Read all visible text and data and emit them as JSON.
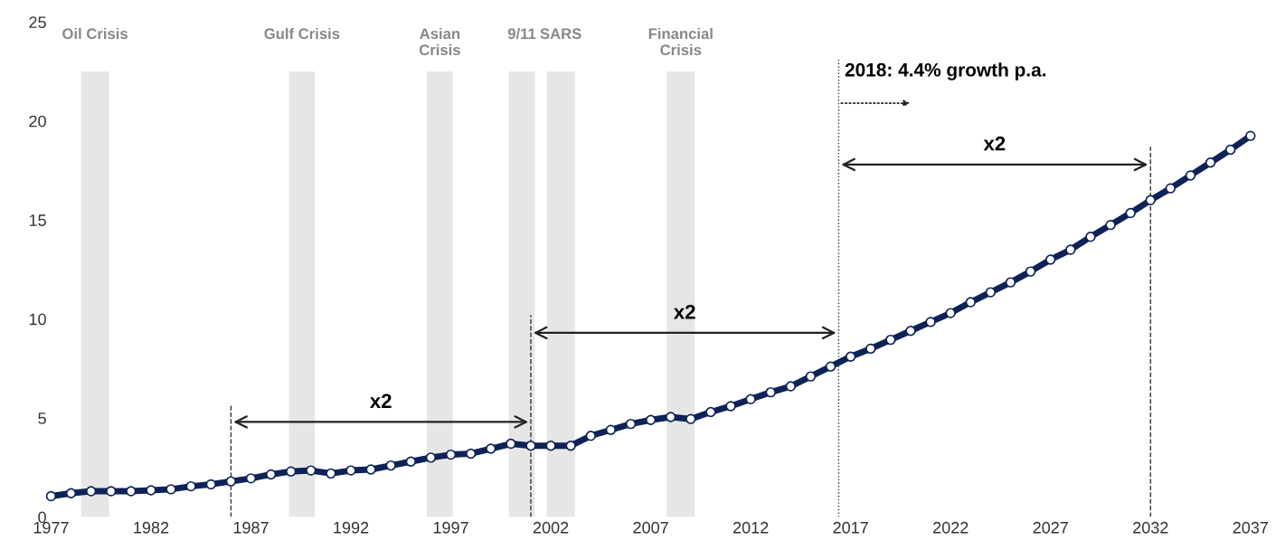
{
  "chart_data": {
    "type": "line",
    "x": [
      1977,
      1978,
      1979,
      1980,
      1981,
      1982,
      1983,
      1984,
      1985,
      1986,
      1987,
      1988,
      1989,
      1990,
      1991,
      1992,
      1993,
      1994,
      1995,
      1996,
      1997,
      1998,
      1999,
      2000,
      2001,
      2002,
      2003,
      2004,
      2005,
      2006,
      2007,
      2008,
      2009,
      2010,
      2011,
      2012,
      2013,
      2014,
      2015,
      2016,
      2017,
      2018,
      2019,
      2020,
      2021,
      2022,
      2023,
      2024,
      2025,
      2026,
      2027,
      2028,
      2029,
      2030,
      2031,
      2032,
      2033,
      2034,
      2035,
      2036,
      2037
    ],
    "series": [
      {
        "color": "#0d2357",
        "values": [
          1.05,
          1.2,
          1.3,
          1.3,
          1.3,
          1.35,
          1.4,
          1.55,
          1.65,
          1.8,
          1.95,
          2.15,
          2.3,
          2.35,
          2.2,
          2.35,
          2.4,
          2.6,
          2.8,
          3.0,
          3.15,
          3.2,
          3.45,
          3.7,
          3.6,
          3.6,
          3.6,
          4.1,
          4.4,
          4.7,
          4.9,
          5.05,
          4.95,
          5.3,
          5.6,
          5.95,
          6.3,
          6.6,
          7.1,
          7.6,
          8.1,
          8.5,
          8.95,
          9.4,
          9.85,
          10.3,
          10.85,
          11.35,
          11.85,
          12.4,
          13.0,
          13.5,
          14.15,
          14.75,
          15.35,
          16.0,
          16.6,
          17.25,
          17.9,
          18.55,
          19.25
        ]
      }
    ],
    "marker": "circle",
    "line_style": "solid",
    "grid": false,
    "xlim": [
      1977,
      2037
    ],
    "xticks": [
      1977,
      1982,
      1987,
      1992,
      1997,
      2002,
      2007,
      2012,
      2017,
      2022,
      2027,
      2032,
      2037
    ],
    "ylim": [
      0,
      25
    ],
    "yticks": [
      0,
      5,
      10,
      15,
      20,
      25
    ],
    "bands": [
      {
        "axis": "x",
        "from": 1978.5,
        "to": 1979.9,
        "label": "Oil Crisis",
        "color": "#e6e6e6"
      },
      {
        "axis": "x",
        "from": 1988.9,
        "to": 1990.2,
        "label": "Gulf Crisis",
        "color": "#e6e6e6"
      },
      {
        "axis": "x",
        "from": 1995.8,
        "to": 1997.1,
        "label": "Asian\nCrisis",
        "color": "#e6e6e6"
      },
      {
        "axis": "x",
        "from": 1999.9,
        "to": 2001.2,
        "label": "9/11",
        "color": "#e6e6e6"
      },
      {
        "axis": "x",
        "from": 2001.8,
        "to": 2003.2,
        "label": "SARS",
        "color": "#e6e6e6"
      },
      {
        "axis": "x",
        "from": 2007.8,
        "to": 2009.2,
        "label": "Financial\nCrisis",
        "color": "#e6e6e6"
      }
    ],
    "ref_lines": [
      {
        "axis": "x",
        "value": 1986,
        "line_style": "dashed",
        "color": "#333333"
      },
      {
        "axis": "x",
        "value": 2001,
        "line_style": "dashed",
        "color": "#333333"
      },
      {
        "axis": "x",
        "value": 2016.4,
        "line_style": "dotted",
        "color": "#333333"
      },
      {
        "axis": "x",
        "value": 2032,
        "line_style": "dashed",
        "color": "#333333"
      }
    ],
    "annotations": [
      "x2",
      "x2",
      "x2",
      "2018: 4.4% growth p.a."
    ]
  }
}
